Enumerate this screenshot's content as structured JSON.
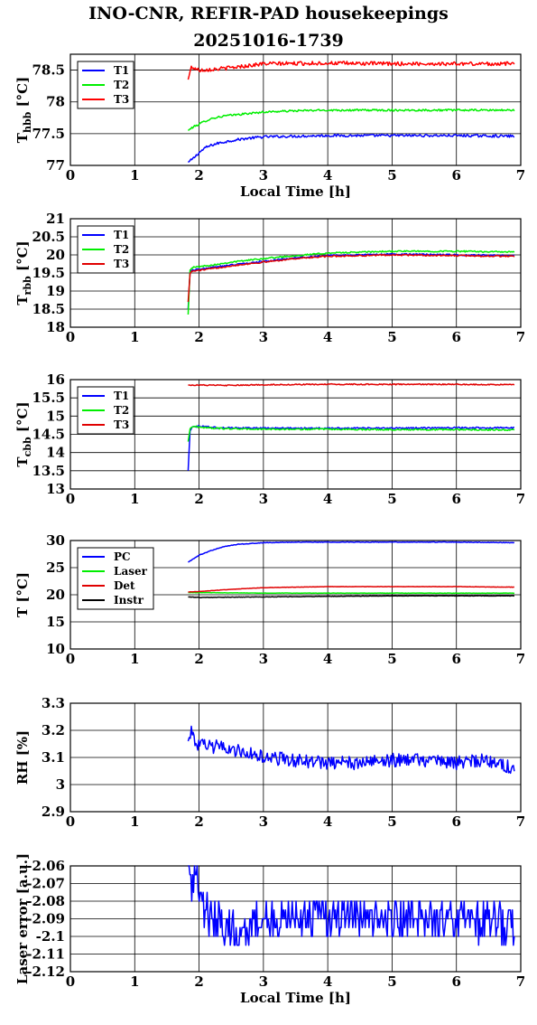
{
  "title": {
    "line1": "INO-CNR, REFIR-PAD housekeepings",
    "line2": "20251016-1739"
  },
  "chart_data": [
    {
      "type": "line",
      "id": "hbb",
      "ylabel": "T",
      "ylabel_sub": "hbb",
      "ylabel_unit": " [°C]",
      "xlabel": "Local Time [h]",
      "xlim": [
        0,
        7
      ],
      "ylim": [
        77,
        78.75
      ],
      "xticks": [
        0,
        1,
        2,
        3,
        4,
        5,
        6,
        7
      ],
      "yticks": [
        77,
        77.5,
        78,
        78.5
      ],
      "ytick_labels": [
        "77",
        "77.5",
        "78",
        "78.5"
      ],
      "grid": true,
      "legend": "top-left",
      "series": [
        {
          "name": "T1",
          "color": "#0000ff",
          "x": [
            1.83,
            1.9,
            2.0,
            2.1,
            2.2,
            2.3,
            2.5,
            2.7,
            3.0,
            3.5,
            4.0,
            5.0,
            6.0,
            6.9
          ],
          "y": [
            77.05,
            77.1,
            77.2,
            77.28,
            77.32,
            77.35,
            77.39,
            77.42,
            77.45,
            77.46,
            77.47,
            77.47,
            77.47,
            77.46
          ],
          "noise": 0.02
        },
        {
          "name": "T2",
          "color": "#00ee00",
          "x": [
            1.83,
            1.9,
            2.0,
            2.1,
            2.2,
            2.4,
            2.6,
            2.8,
            3.0,
            3.5,
            4.0,
            5.0,
            6.0,
            6.9
          ],
          "y": [
            77.55,
            77.6,
            77.65,
            77.7,
            77.74,
            77.78,
            77.8,
            77.82,
            77.84,
            77.86,
            77.87,
            77.87,
            77.87,
            77.87
          ],
          "noise": 0.015
        },
        {
          "name": "T3",
          "color": "#ff0000",
          "x": [
            1.83,
            1.88,
            2.0,
            2.3,
            2.6,
            3.0,
            4.0,
            5.0,
            6.0,
            6.9
          ],
          "y": [
            78.35,
            78.55,
            78.5,
            78.52,
            78.55,
            78.6,
            78.61,
            78.6,
            78.6,
            78.6
          ],
          "noise": 0.03
        }
      ]
    },
    {
      "type": "line",
      "id": "rbb",
      "ylabel": "T",
      "ylabel_sub": "rbb",
      "ylabel_unit": " [°C]",
      "xlabel": "",
      "xlim": [
        0,
        7
      ],
      "ylim": [
        18,
        21
      ],
      "xticks": [
        0,
        1,
        2,
        3,
        4,
        5,
        6,
        7
      ],
      "yticks": [
        18,
        18.5,
        19,
        19.5,
        20,
        20.5,
        21
      ],
      "ytick_labels": [
        "18",
        "18.5",
        "19",
        "19.5",
        "20",
        "20.5",
        "21"
      ],
      "grid": true,
      "legend": "top-left",
      "series": [
        {
          "name": "T1",
          "color": "#0000ff",
          "x": [
            1.83,
            1.86,
            1.9,
            2.2,
            2.5,
            3.0,
            3.5,
            4.0,
            5.0,
            6.0,
            6.9
          ],
          "y": [
            18.5,
            19.55,
            19.58,
            19.65,
            19.72,
            19.82,
            19.92,
            19.98,
            20.02,
            20.0,
            19.98
          ],
          "noise": 0.02
        },
        {
          "name": "T2",
          "color": "#00ee00",
          "x": [
            1.83,
            1.86,
            1.9,
            2.2,
            2.5,
            3.0,
            3.5,
            4.0,
            5.0,
            6.0,
            6.9
          ],
          "y": [
            18.35,
            19.6,
            19.65,
            19.72,
            19.8,
            19.9,
            19.98,
            20.05,
            20.1,
            20.1,
            20.08
          ],
          "noise": 0.02
        },
        {
          "name": "T3",
          "color": "#e00000",
          "x": [
            1.83,
            1.86,
            1.9,
            2.2,
            2.5,
            3.0,
            3.5,
            4.0,
            5.0,
            6.0,
            6.9
          ],
          "y": [
            18.7,
            19.5,
            19.55,
            19.62,
            19.7,
            19.8,
            19.9,
            19.96,
            20.0,
            19.98,
            19.96
          ],
          "noise": 0.02
        }
      ]
    },
    {
      "type": "line",
      "id": "cbb",
      "ylabel": "T",
      "ylabel_sub": "cbb",
      "ylabel_unit": " [°C]",
      "xlabel": "",
      "xlim": [
        0,
        7
      ],
      "ylim": [
        13,
        16
      ],
      "xticks": [
        0,
        1,
        2,
        3,
        4,
        5,
        6,
        7
      ],
      "yticks": [
        13,
        13.5,
        14,
        14.5,
        15,
        15.5,
        16
      ],
      "ytick_labels": [
        "13",
        "13.5",
        "14",
        "14.5",
        "15",
        "15.5",
        "16"
      ],
      "grid": true,
      "legend": "top-left",
      "series": [
        {
          "name": "T1",
          "color": "#0000ff",
          "x": [
            1.83,
            1.86,
            1.9,
            2.0,
            2.3,
            3.0,
            4.0,
            5.0,
            6.0,
            6.9
          ],
          "y": [
            13.5,
            14.6,
            14.7,
            14.72,
            14.68,
            14.67,
            14.67,
            14.67,
            14.68,
            14.68
          ],
          "noise": 0.02
        },
        {
          "name": "T2",
          "color": "#00ee00",
          "x": [
            1.83,
            1.86,
            1.9,
            2.0,
            2.3,
            3.0,
            4.0,
            5.0,
            6.0,
            6.9
          ],
          "y": [
            14.3,
            14.65,
            14.72,
            14.7,
            14.66,
            14.64,
            14.64,
            14.63,
            14.63,
            14.62
          ],
          "noise": 0.02
        },
        {
          "name": "T3",
          "color": "#e00000",
          "x": [
            1.83,
            2.0,
            2.5,
            3.0,
            4.0,
            5.0,
            6.0,
            6.9
          ],
          "y": [
            15.85,
            15.85,
            15.84,
            15.86,
            15.87,
            15.87,
            15.87,
            15.86
          ],
          "noise": 0.015
        }
      ]
    },
    {
      "type": "line",
      "id": "temps",
      "ylabel": "T",
      "ylabel_sub": "",
      "ylabel_unit": " [°C]",
      "xlabel": "",
      "xlim": [
        0,
        7
      ],
      "ylim": [
        10,
        30
      ],
      "xticks": [
        0,
        1,
        2,
        3,
        4,
        5,
        6,
        7
      ],
      "yticks": [
        10,
        15,
        20,
        25,
        30
      ],
      "ytick_labels": [
        "10",
        "15",
        "20",
        "25",
        "30"
      ],
      "grid": true,
      "legend": "top-left",
      "series": [
        {
          "name": "PC",
          "color": "#0000ff",
          "x": [
            1.83,
            2.0,
            2.2,
            2.4,
            2.6,
            3.0,
            3.5,
            4.0,
            5.0,
            6.0,
            6.9
          ],
          "y": [
            26.0,
            27.3,
            28.2,
            28.9,
            29.3,
            29.6,
            29.7,
            29.7,
            29.7,
            29.7,
            29.6
          ],
          "noise": 0.05
        },
        {
          "name": "Laser",
          "color": "#00ee00",
          "x": [
            1.83,
            2.0,
            3.0,
            4.0,
            5.0,
            6.0,
            6.9
          ],
          "y": [
            20.4,
            20.4,
            20.3,
            20.3,
            20.3,
            20.3,
            20.3
          ],
          "noise": 0.03
        },
        {
          "name": "Det",
          "color": "#e00000",
          "x": [
            1.83,
            2.0,
            2.5,
            3.0,
            3.5,
            4.0,
            5.0,
            6.0,
            6.9
          ],
          "y": [
            20.5,
            20.6,
            21.0,
            21.3,
            21.4,
            21.5,
            21.5,
            21.5,
            21.4
          ],
          "noise": 0.03
        },
        {
          "name": "Instr",
          "color": "#000000",
          "x": [
            1.83,
            2.0,
            3.0,
            4.0,
            5.0,
            6.0,
            6.9
          ],
          "y": [
            19.6,
            19.5,
            19.6,
            19.7,
            19.8,
            19.8,
            19.8
          ],
          "noise": 0.04
        }
      ]
    },
    {
      "type": "line",
      "id": "rh",
      "ylabel": "RH",
      "ylabel_sub": "",
      "ylabel_unit": " [%]",
      "xlabel": "",
      "xlim": [
        0,
        7
      ],
      "ylim": [
        2.9,
        3.3
      ],
      "xticks": [
        0,
        1,
        2,
        3,
        4,
        5,
        6,
        7
      ],
      "yticks": [
        2.9,
        3.0,
        3.1,
        3.2,
        3.3
      ],
      "ytick_labels": [
        "2.9",
        "3",
        "3.1",
        "3.2",
        "3.3"
      ],
      "grid": true,
      "legend": "none",
      "series": [
        {
          "name": "",
          "color": "#0000ff",
          "x": [
            1.83,
            1.88,
            1.95,
            2.1,
            2.3,
            2.5,
            2.7,
            3.0,
            3.5,
            4.0,
            4.5,
            5.0,
            5.5,
            6.0,
            6.5,
            6.9
          ],
          "y": [
            3.16,
            3.2,
            3.15,
            3.14,
            3.14,
            3.13,
            3.12,
            3.1,
            3.09,
            3.08,
            3.08,
            3.09,
            3.09,
            3.08,
            3.09,
            3.06
          ],
          "noise": 0.025
        }
      ]
    },
    {
      "type": "line",
      "id": "laser",
      "ylabel": "Laser error [a.u.]",
      "ylabel_sub": "",
      "ylabel_unit": "",
      "xlabel": "Local Time [h]",
      "xlim": [
        0,
        7
      ],
      "ylim": [
        -2.12,
        -2.06
      ],
      "xticks": [
        0,
        1,
        2,
        3,
        4,
        5,
        6,
        7
      ],
      "yticks": [
        -2.12,
        -2.11,
        -2.1,
        -2.09,
        -2.08,
        -2.07,
        -2.06
      ],
      "ytick_labels": [
        "-2.12",
        "-2.11",
        "-2.1",
        "-2.09",
        "-2.08",
        "-2.07",
        "-2.06"
      ],
      "grid": true,
      "legend": "none",
      "series": [
        {
          "name": "",
          "color": "#0000ff",
          "x": [
            1.83,
            1.9,
            1.97,
            2.05,
            2.5,
            3.0,
            4.0,
            5.0,
            6.0,
            6.9
          ],
          "y": [
            -2.06,
            -2.07,
            -2.065,
            -2.085,
            -2.095,
            -2.09,
            -2.09,
            -2.09,
            -2.09,
            -2.095
          ],
          "noise": 0.012,
          "quant": 0.005
        }
      ]
    }
  ]
}
